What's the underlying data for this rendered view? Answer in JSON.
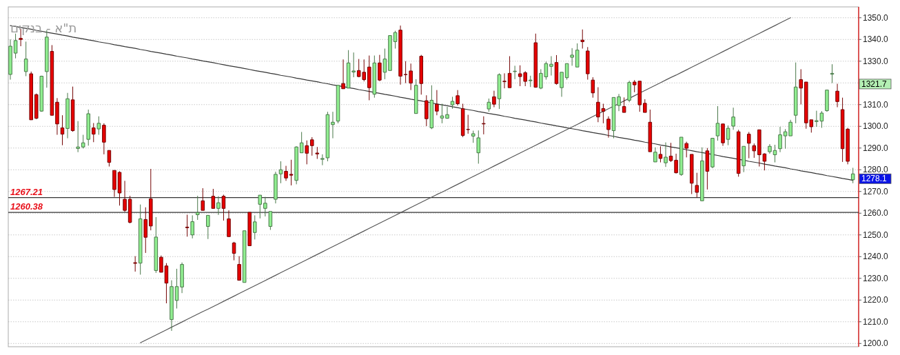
{
  "chart_data": {
    "type": "candlestick",
    "title": "ת\"א - בנקים",
    "categories": [
      null,
      null,
      null,
      null,
      null,
      null,
      null,
      null,
      null,
      null,
      null,
      null,
      null,
      null,
      null,
      null,
      null,
      null,
      null,
      null,
      null,
      null,
      null,
      null,
      null,
      null,
      null,
      null,
      null,
      null,
      null,
      null,
      null,
      null,
      null,
      null,
      null,
      null,
      null,
      null,
      null,
      null,
      null,
      null,
      null,
      null,
      null,
      null,
      null,
      null,
      null,
      null,
      null,
      null,
      null,
      null,
      null,
      null,
      null,
      null,
      null,
      null,
      null,
      null,
      null,
      null,
      null,
      null,
      null,
      null,
      null,
      null,
      null,
      null,
      null,
      null,
      null,
      null,
      null,
      null,
      null,
      null,
      null,
      null,
      null,
      null,
      null,
      null,
      null,
      null,
      null,
      null,
      null,
      null,
      null,
      null,
      null,
      null,
      null,
      null,
      null,
      null,
      null,
      null,
      null,
      null,
      null,
      null,
      null,
      null,
      null,
      null,
      null,
      null,
      null,
      null,
      null,
      null,
      null,
      null,
      null,
      null,
      null,
      null,
      null,
      null,
      null,
      null,
      null,
      null,
      null,
      null,
      null,
      null,
      null,
      null,
      null,
      null,
      null,
      null,
      null,
      null,
      null,
      null,
      null,
      null,
      null,
      null,
      null,
      null,
      null,
      null,
      null,
      null,
      null,
      null,
      null,
      null,
      null,
      null,
      null,
      null,
      null
    ],
    "ohlc": [
      [
        1323.9,
        1340.0,
        1321.5,
        1336.9
      ],
      [
        1333.7,
        1342.7,
        1331.3,
        1339.5
      ],
      [
        1340.5,
        1344.8,
        1336.9,
        1340.0
      ],
      [
        1325.2,
        1339.0,
        1323.1,
        1331.0
      ],
      [
        1324.2,
        1325.2,
        1303.0,
        1303.0
      ],
      [
        1314.6,
        1315.1,
        1303.3,
        1303.7
      ],
      [
        1307.0,
        1323.3,
        1306.7,
        1323.1
      ],
      [
        1325.2,
        1344.3,
        1317.8,
        1341.1
      ],
      [
        1334.5,
        1337.4,
        1305.0,
        1305.1
      ],
      [
        1311.1,
        1313.0,
        1296.1,
        1301.1
      ],
      [
        1299.3,
        1305.1,
        1291.3,
        1296.4
      ],
      [
        1299.0,
        1315.4,
        1294.5,
        1312.7
      ],
      [
        1312.2,
        1318.3,
        1297.5,
        1298.0
      ],
      [
        1289.8,
        1302.4,
        1288.1,
        1290.5
      ],
      [
        1290.5,
        1296.1,
        1289.8,
        1292.4
      ],
      [
        1294.0,
        1307.7,
        1291.1,
        1305.8
      ],
      [
        1299.3,
        1301.5,
        1292.7,
        1296.4
      ],
      [
        1298.8,
        1304.6,
        1296.1,
        1301.4
      ],
      [
        1300.5,
        1301.4,
        1287.1,
        1292.7
      ],
      [
        1288.9,
        1288.9,
        1281.5,
        1283.4
      ],
      [
        1279.7,
        1279.7,
        1267.5,
        1270.9
      ],
      [
        1278.8,
        1279.3,
        1263.5,
        1269.3
      ],
      [
        1266.4,
        1274.9,
        1260.6,
        1261.3
      ],
      [
        1266.4,
        1268.0,
        1255.3,
        1255.8
      ],
      [
        1237.2,
        1240.2,
        1233.1,
        1236.9
      ],
      [
        1237.0,
        1264.0,
        1231.7,
        1257.4
      ],
      [
        1257.1,
        1262.7,
        1241.7,
        1248.9
      ],
      [
        1266.6,
        1280.4,
        1252.1,
        1254.1
      ],
      [
        1233.6,
        1258.2,
        1232.5,
        1249.0
      ],
      [
        1239.7,
        1240.5,
        1232.8,
        1232.8
      ],
      [
        1235.7,
        1237.0,
        1218.5,
        1227.8
      ],
      [
        1211.0,
        1229.1,
        1205.8,
        1226.2
      ],
      [
        1219.8,
        1234.4,
        1216.1,
        1226.2
      ],
      [
        1226.0,
        1237.3,
        1223.2,
        1236.4
      ],
      [
        1253.6,
        1259.3,
        1249.2,
        1253.3
      ],
      [
        1250.0,
        1259.0,
        1248.4,
        1256.1
      ],
      [
        1259.3,
        1268.0,
        1256.9,
        1260.3
      ],
      [
        1265.7,
        1271.5,
        1261.3,
        1261.3
      ],
      [
        1253.9,
        1259.0,
        1248.1,
        1259.0
      ],
      [
        1267.8,
        1271.2,
        1262.2,
        1262.2
      ],
      [
        1262.2,
        1267.8,
        1259.2,
        1264.8
      ],
      [
        1267.8,
        1268.5,
        1256.6,
        1262.2
      ],
      [
        1257.4,
        1261.3,
        1249.2,
        1249.2
      ],
      [
        1246.3,
        1246.8,
        1238.3,
        1241.5
      ],
      [
        1236.4,
        1240.2,
        1229.1,
        1229.1
      ],
      [
        1228.1,
        1251.9,
        1228.1,
        1251.9
      ],
      [
        1260.4,
        1260.4,
        1245.0,
        1245.0
      ],
      [
        1251.1,
        1259.0,
        1247.9,
        1256.0
      ],
      [
        1264.1,
        1268.3,
        1257.6,
        1268.3
      ],
      [
        1262.2,
        1267.5,
        1258.5,
        1264.6
      ],
      [
        1253.9,
        1260.8,
        1252.3,
        1260.8
      ],
      [
        1266.4,
        1279.1,
        1264.5,
        1277.9
      ],
      [
        1278.1,
        1283.9,
        1273.8,
        1280.0
      ],
      [
        1279.3,
        1281.8,
        1274.9,
        1276.2
      ],
      [
        1277.9,
        1284.6,
        1272.8,
        1277.5
      ],
      [
        1275.1,
        1290.8,
        1273.3,
        1290.5
      ],
      [
        1287.8,
        1297.4,
        1287.8,
        1292.4
      ],
      [
        1291.1,
        1293.5,
        1282.5,
        1287.6
      ],
      [
        1293.8,
        1295.0,
        1286.5,
        1291.1
      ],
      [
        1287.7,
        1290.5,
        1285.0,
        1287.3
      ],
      [
        1284.8,
        1287.1,
        1282.1,
        1285.2
      ],
      [
        1285.5,
        1306.7,
        1283.9,
        1305.4
      ],
      [
        1300.8,
        1306.7,
        1294.5,
        1301.9
      ],
      [
        1302.4,
        1318.9,
        1301.4,
        1318.9
      ],
      [
        1319.7,
        1330.8,
        1317.3,
        1317.3
      ],
      [
        1317.6,
        1335.1,
        1317.6,
        1329.2
      ],
      [
        1325.0,
        1334.0,
        1322.6,
        1325.5
      ],
      [
        1325.7,
        1331.0,
        1322.6,
        1322.9
      ],
      [
        1324.9,
        1330.8,
        1320.7,
        1321.5
      ],
      [
        1327.3,
        1332.6,
        1312.0,
        1317.8
      ],
      [
        1314.8,
        1332.6,
        1313.2,
        1329.2
      ],
      [
        1329.2,
        1332.9,
        1320.8,
        1321.3
      ],
      [
        1324.9,
        1335.8,
        1321.7,
        1331.0
      ],
      [
        1325.7,
        1341.8,
        1325.7,
        1341.8
      ],
      [
        1339.0,
        1344.0,
        1335.8,
        1343.2
      ],
      [
        1344.3,
        1346.4,
        1319.2,
        1323.1
      ],
      [
        1323.9,
        1330.0,
        1319.9,
        1323.8
      ],
      [
        1325.5,
        1328.9,
        1316.7,
        1319.9
      ],
      [
        1305.9,
        1321.7,
        1305.9,
        1318.9
      ],
      [
        1332.3,
        1332.9,
        1314.6,
        1319.7
      ],
      [
        1311.8,
        1314.3,
        1300.1,
        1303.5
      ],
      [
        1299.3,
        1318.9,
        1298.7,
        1312.0
      ],
      [
        1310.2,
        1316.7,
        1305.1,
        1307.0
      ],
      [
        1303.8,
        1310.4,
        1301.4,
        1304.8
      ],
      [
        1303.7,
        1309.0,
        1303.5,
        1305.4
      ],
      [
        1309.9,
        1313.6,
        1308.1,
        1311.5
      ],
      [
        1314.1,
        1316.7,
        1309.6,
        1310.4
      ],
      [
        1308.1,
        1310.4,
        1295.0,
        1295.8
      ],
      [
        1298.6,
        1305.3,
        1296.6,
        1298.5
      ],
      [
        1295.5,
        1298.0,
        1292.4,
        1296.6
      ],
      [
        1287.8,
        1298.1,
        1282.8,
        1294.7
      ],
      [
        1301.3,
        1304.6,
        1296.3,
        1301.1
      ],
      [
        1308.0,
        1312.8,
        1306.7,
        1311.1
      ],
      [
        1313.6,
        1316.4,
        1308.8,
        1310.2
      ],
      [
        1312.7,
        1324.4,
        1308.0,
        1323.8
      ],
      [
        1320.8,
        1324.4,
        1317.5,
        1320.6
      ],
      [
        1324.4,
        1332.3,
        1317.8,
        1317.8
      ],
      [
        1325.2,
        1327.9,
        1321.7,
        1325.4
      ],
      [
        1324.2,
        1328.1,
        1318.5,
        1322.9
      ],
      [
        1324.7,
        1325.4,
        1318.5,
        1320.7
      ],
      [
        1321.0,
        1323.3,
        1318.1,
        1321.3
      ],
      [
        1338.5,
        1342.7,
        1317.8,
        1318.0
      ],
      [
        1317.6,
        1326.3,
        1317.1,
        1324.4
      ],
      [
        1322.8,
        1329.8,
        1321.5,
        1328.9
      ],
      [
        1327.6,
        1332.3,
        1323.4,
        1328.6
      ],
      [
        1329.4,
        1332.8,
        1319.2,
        1319.7
      ],
      [
        1317.8,
        1324.9,
        1313.6,
        1324.9
      ],
      [
        1322.4,
        1328.9,
        1321.5,
        1328.9
      ],
      [
        1331.8,
        1336.0,
        1327.9,
        1332.8
      ],
      [
        1327.3,
        1338.2,
        1327.3,
        1335.1
      ],
      [
        1339.7,
        1344.6,
        1335.8,
        1339.0
      ],
      [
        1334.7,
        1336.5,
        1321.5,
        1324.2
      ],
      [
        1321.3,
        1322.6,
        1313.2,
        1315.4
      ],
      [
        1311.1,
        1318.0,
        1301.9,
        1304.3
      ],
      [
        1308.2,
        1310.4,
        1301.4,
        1306.9
      ],
      [
        1303.3,
        1304.6,
        1294.8,
        1298.5
      ],
      [
        1298.0,
        1313.3,
        1294.5,
        1313.3
      ],
      [
        1309.6,
        1314.9,
        1307.0,
        1313.6
      ],
      [
        1309.1,
        1313.3,
        1306.4,
        1306.4
      ],
      [
        1312.0,
        1321.0,
        1311.1,
        1320.2
      ],
      [
        1320.4,
        1321.3,
        1315.7,
        1319.1
      ],
      [
        1320.8,
        1320.8,
        1306.7,
        1309.9
      ],
      [
        1310.6,
        1312.5,
        1306.4,
        1306.4
      ],
      [
        1301.9,
        1307.7,
        1288.3,
        1288.3
      ],
      [
        1283.6,
        1290.3,
        1283.6,
        1288.1
      ],
      [
        1287.1,
        1290.8,
        1283.4,
        1285.2
      ],
      [
        1283.2,
        1292.6,
        1281.3,
        1285.8
      ],
      [
        1286.3,
        1292.4,
        1283.6,
        1284.2
      ],
      [
        1284.4,
        1287.4,
        1278.3,
        1278.6
      ],
      [
        1277.8,
        1295.0,
        1277.2,
        1295.0
      ],
      [
        1292.1,
        1292.9,
        1285.7,
        1289.9
      ],
      [
        1287.1,
        1287.1,
        1268.8,
        1273.8
      ],
      [
        1272.8,
        1278.6,
        1267.3,
        1269.6
      ],
      [
        1265.7,
        1290.3,
        1265.7,
        1284.1
      ],
      [
        1288.7,
        1290.0,
        1270.9,
        1279.3
      ],
      [
        1281.3,
        1294.5,
        1280.7,
        1294.5
      ],
      [
        1295.6,
        1309.3,
        1293.4,
        1301.4
      ],
      [
        1301.1,
        1301.1,
        1291.0,
        1292.4
      ],
      [
        1294.0,
        1300.4,
        1291.3,
        1299.1
      ],
      [
        1300.1,
        1308.6,
        1298.4,
        1304.3
      ],
      [
        1297.5,
        1298.4,
        1276.8,
        1278.3
      ],
      [
        1281.8,
        1290.8,
        1278.9,
        1290.8
      ],
      [
        1296.4,
        1297.4,
        1285.3,
        1292.2
      ],
      [
        1291.1,
        1292.1,
        1285.5,
        1288.7
      ],
      [
        1298.4,
        1298.4,
        1281.5,
        1286.9
      ],
      [
        1287.3,
        1287.6,
        1279.7,
        1283.9
      ],
      [
        1288.3,
        1291.8,
        1287.4,
        1290.8
      ],
      [
        1286.9,
        1291.5,
        1283.4,
        1288.9
      ],
      [
        1289.7,
        1299.8,
        1288.1,
        1296.1
      ],
      [
        1295.6,
        1298.7,
        1289.7,
        1297.5
      ],
      [
        1295.6,
        1303.0,
        1295.6,
        1301.9
      ],
      [
        1305.1,
        1329.4,
        1301.4,
        1318.1
      ],
      [
        1321.5,
        1326.3,
        1310.1,
        1317.6
      ],
      [
        1320.4,
        1320.4,
        1298.9,
        1301.6
      ],
      [
        1303.0,
        1303.0,
        1297.1,
        1299.8
      ],
      [
        1302.2,
        1307.2,
        1299.8,
        1302.6
      ],
      [
        1302.4,
        1307.0,
        1299.3,
        1306.1
      ],
      [
        1307.2,
        1316.7,
        1306.7,
        1316.7
      ],
      [
        1324.0,
        1328.6,
        1319.9,
        1324.4
      ],
      [
        1316.2,
        1319.6,
        1308.8,
        1311.4
      ],
      [
        1307.7,
        1313.2,
        1283.6,
        1289.7
      ],
      [
        1298.7,
        1299.3,
        1282.5,
        1283.9
      ],
      [
        1275.4,
        1280.9,
        1273.8,
        1278.1
      ]
    ],
    "colors": [
      "#90ee90",
      "#90ee90",
      "#e60000",
      "#90ee90",
      "#e60000",
      "#e60000",
      "#90ee90",
      "#90ee90",
      "#e60000",
      "#e60000",
      "#e60000",
      "#90ee90",
      "#e60000",
      "#90ee90",
      "#90ee90",
      "#90ee90",
      "#e60000",
      "#90ee90",
      "#e60000",
      "#e60000",
      "#e60000",
      "#e60000",
      "#e60000",
      "#e60000",
      "#e60000",
      "#90ee90",
      "#e60000",
      "#e60000",
      "#90ee90",
      "#e60000",
      "#e60000",
      "#90ee90",
      "#90ee90",
      "#90ee90",
      "#e60000",
      "#90ee90",
      "#90ee90",
      "#e60000",
      "#90ee90",
      "#e60000",
      "#90ee90",
      "#e60000",
      "#e60000",
      "#e60000",
      "#e60000",
      "#90ee90",
      "#e60000",
      "#90ee90",
      "#90ee90",
      "#90ee90",
      "#90ee90",
      "#90ee90",
      "#90ee90",
      "#e60000",
      "#e60000",
      "#90ee90",
      "#90ee90",
      "#e60000",
      "#e60000",
      "#e60000",
      "#90ee90",
      "#90ee90",
      "#90ee90",
      "#90ee90",
      "#e60000",
      "#90ee90",
      "#90ee90",
      "#e60000",
      "#e60000",
      "#e60000",
      "#90ee90",
      "#e60000",
      "#90ee90",
      "#90ee90",
      "#90ee90",
      "#e60000",
      "#e60000",
      "#e60000",
      "#90ee90",
      "#e60000",
      "#e60000",
      "#90ee90",
      "#e60000",
      "#90ee90",
      "#90ee90",
      "#90ee90",
      "#e60000",
      "#e60000",
      "#e60000",
      "#90ee90",
      "#90ee90",
      "#e60000",
      "#90ee90",
      "#e60000",
      "#90ee90",
      "#e60000",
      "#e60000",
      "#90ee90",
      "#e60000",
      "#e60000",
      "#90ee90",
      "#e60000",
      "#90ee90",
      "#90ee90",
      "#90ee90",
      "#e60000",
      "#90ee90",
      "#90ee90",
      "#90ee90",
      "#90ee90",
      "#e60000",
      "#e60000",
      "#e60000",
      "#e60000",
      "#e60000",
      "#e60000",
      "#90ee90",
      "#90ee90",
      "#e60000",
      "#90ee90",
      "#e60000",
      "#e60000",
      "#e60000",
      "#e60000",
      "#90ee90",
      "#e60000",
      "#90ee90",
      "#e60000",
      "#e60000",
      "#90ee90",
      "#e60000",
      "#e60000",
      "#e60000",
      "#90ee90",
      "#e60000",
      "#90ee90",
      "#90ee90",
      "#e60000",
      "#90ee90",
      "#90ee90",
      "#e60000",
      "#90ee90",
      "#e60000",
      "#e60000",
      "#e60000",
      "#e60000",
      "#90ee90",
      "#90ee90",
      "#90ee90",
      "#90ee90",
      "#90ee90",
      "#90ee90",
      "#e60000",
      "#e60000",
      "#e60000",
      "#90ee90",
      "#90ee90",
      "#90ee90",
      "#90ee90",
      "#e60000",
      "#e60000",
      "#e60000",
      "#90ee90"
    ],
    "series": [
      {
        "type": "line",
        "color": "#333333",
        "values": [
          1346.4,
          1346.0,
          1345.5,
          1345.1,
          1344.7,
          1344.2,
          1343.8,
          1343.3,
          1342.9,
          1342.5,
          1342.0,
          1341.6,
          1341.1,
          1340.7,
          1340.3,
          1339.8,
          1339.4,
          1338.9,
          1338.5,
          1338.1,
          1337.6,
          1337.2,
          1336.7,
          1336.3,
          1335.9,
          1335.4,
          1335.0,
          1334.5,
          1334.1,
          1333.7,
          1333.2,
          1332.8,
          1332.3,
          1331.9,
          1331.5,
          1331.0,
          1330.6,
          1330.1,
          1329.7,
          1329.3,
          1328.8,
          1328.4,
          1327.9,
          1327.5,
          1327.1,
          1326.6,
          1326.2,
          1325.7,
          1325.3,
          1324.9,
          1324.4,
          1324.0,
          1323.5,
          1323.1,
          1322.7,
          1322.2,
          1321.8,
          1321.3,
          1320.9,
          1320.5,
          1320.0,
          1319.6,
          1319.1,
          1318.7,
          1318.3,
          1317.8,
          1317.4,
          1316.9,
          1316.5,
          1316.1,
          1315.6,
          1315.2,
          1314.7,
          1314.3,
          1313.9,
          1313.4,
          1313.0,
          1312.5,
          1312.1,
          1311.7,
          1311.2,
          1310.8,
          1310.3,
          1309.9,
          1309.5,
          1309.0,
          1308.6,
          1308.1,
          1307.7,
          1307.3,
          1306.8,
          1306.4,
          1305.9,
          1305.5,
          1305.1,
          1304.6,
          1304.2,
          1303.7,
          1303.3,
          1302.9,
          1302.4,
          1302.0,
          1301.5,
          1301.1,
          1300.7,
          1300.2,
          1299.8,
          1299.3,
          1298.9,
          1298.5,
          1298.0,
          1297.6,
          1297.1,
          1296.7,
          1296.3,
          1295.8,
          1295.4,
          1294.9,
          1294.5,
          1294.1,
          1293.6,
          1293.2,
          1292.7,
          1292.3,
          1291.9,
          1291.4,
          1291.0,
          1290.5,
          1290.1,
          1289.7,
          1289.2,
          1288.8,
          1288.3,
          1287.9,
          1287.5,
          1287.0,
          1286.6,
          1286.1,
          1285.7,
          1285.3,
          1284.8,
          1284.4,
          1283.9,
          1283.5,
          1283.1,
          1282.6,
          1282.2,
          1281.7,
          1281.3,
          1280.9,
          1280.4,
          1280.0,
          1279.5,
          1279.1,
          1278.7,
          1278.2,
          1277.8,
          1277.3,
          1276.9,
          1276.5,
          1276.0,
          1275.6,
          1275.1
        ]
      },
      {
        "type": "line",
        "color": "#555555",
        "values": [
          null,
          null,
          null,
          null,
          null,
          null,
          null,
          null,
          null,
          null,
          null,
          null,
          null,
          null,
          null,
          null,
          null,
          null,
          null,
          null,
          null,
          null,
          null,
          null,
          null,
          1200.3,
          1201.5,
          1202.7,
          1203.9,
          1205.1,
          1206.3,
          1207.5,
          1208.7,
          1209.9,
          1211.1,
          1212.3,
          1213.5,
          1214.7,
          1215.8,
          1217.0,
          1218.2,
          1219.4,
          1220.6,
          1221.8,
          1223.0,
          1224.2,
          1225.4,
          1226.6,
          1227.8,
          1229.0,
          1230.2,
          1231.4,
          1232.6,
          1233.8,
          1235.0,
          1236.2,
          1237.4,
          1238.6,
          1239.8,
          1241.0,
          1242.2,
          1243.4,
          1244.6,
          1245.8,
          1247.0,
          1248.2,
          1249.4,
          1250.6,
          1251.8,
          1253.0,
          1254.2,
          1255.4,
          1256.6,
          1257.8,
          1259.0,
          1260.2,
          1261.4,
          1262.6,
          1263.8,
          1265.0,
          1266.2,
          1267.4,
          1268.6,
          1269.7,
          1270.9,
          1272.1,
          1273.3,
          1274.5,
          1275.7,
          1276.9,
          1278.1,
          1279.3,
          1280.5,
          1281.7,
          1282.9,
          1284.1,
          1285.3,
          1286.5,
          1287.7,
          1288.9,
          1290.1,
          1291.3,
          1292.5,
          1293.7,
          1294.9,
          1296.1,
          1297.3,
          1298.5,
          1299.7,
          1300.9,
          1302.1,
          1303.3,
          1304.5,
          1305.7,
          1306.9,
          1308.1,
          1309.3,
          1310.5,
          1311.7,
          1312.9,
          1314.1,
          1315.3,
          1316.5,
          1317.7,
          1318.9,
          1320.1,
          1321.3,
          1322.5,
          1323.6,
          1324.8,
          1326.0,
          1327.2,
          1328.4,
          1329.6,
          1330.8,
          1332.0,
          1333.2,
          1334.4,
          1335.6,
          1336.8,
          1338.0,
          1339.2,
          1340.4,
          1341.6,
          1342.8,
          1344.0,
          1345.2,
          1346.4,
          1347.6,
          1348.8,
          1350.0,
          null,
          null,
          null,
          null,
          null,
          null,
          null,
          null,
          null,
          null,
          null,
          null
        ]
      }
    ],
    "ref_lines": [
      {
        "axis": "y",
        "value": 1267.21,
        "label": "1267.21",
        "color": "#333333"
      },
      {
        "axis": "y",
        "value": 1260.38,
        "label": "1260.38",
        "color": "#333333"
      }
    ],
    "annotations": [
      "1321.7",
      "1278.1"
    ],
    "ylim": [
      1198.5,
      1355
    ],
    "yticks": [
      {
        "value": 1200,
        "label": "1200.0"
      },
      {
        "value": 1210,
        "label": "1210.0"
      },
      {
        "value": 1220,
        "label": "1220.0"
      },
      {
        "value": 1230,
        "label": "1230.0"
      },
      {
        "value": 1240,
        "label": "1240.0"
      },
      {
        "value": 1250,
        "label": "1250.0"
      },
      {
        "value": 1260,
        "label": "1260.0"
      },
      {
        "value": 1270,
        "label": "1270.0"
      },
      {
        "value": 1280,
        "label": "1280.0"
      },
      {
        "value": 1290,
        "label": "1290.0"
      },
      {
        "value": 1300,
        "label": "1300.0"
      },
      {
        "value": 1310,
        "label": "1310.0"
      },
      {
        "value": 1320,
        "label": null
      },
      {
        "value": 1330,
        "label": "1330.0"
      },
      {
        "value": 1340,
        "label": "1340.0"
      },
      {
        "value": 1350,
        "label": "1350.0"
      }
    ],
    "grid": "y"
  }
}
